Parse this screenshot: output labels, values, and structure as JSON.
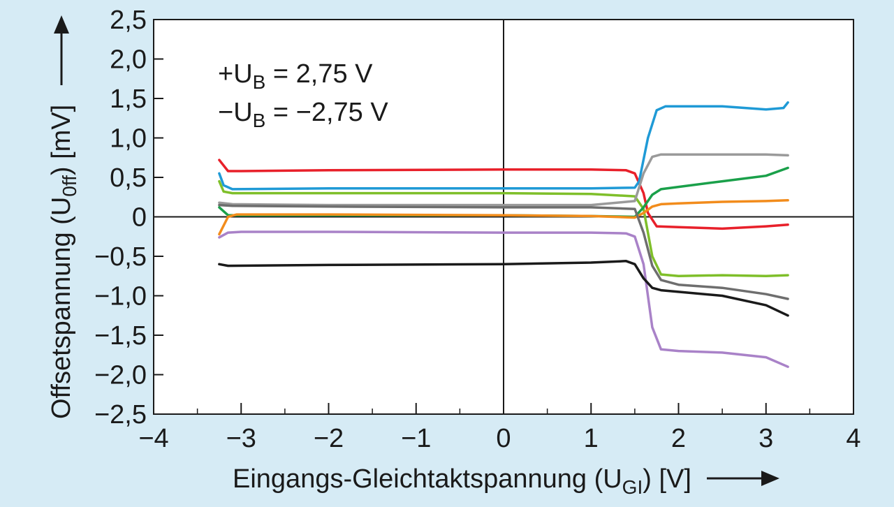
{
  "chart_data": {
    "type": "line",
    "xlabel": "Eingangs-Gleichtaktspannung (U",
    "xlabel_sub": "GI",
    "xlabel_tail": ") [V]",
    "ylabel": "Offsetspannung (U",
    "ylabel_sub": "0ff",
    "ylabel_tail": ") [mV]",
    "annotation": {
      "line1": {
        "prefix": "+U",
        "sub": "B",
        "suffix": " = 2,75 V"
      },
      "line2": {
        "prefix": "−U",
        "sub": "B",
        "suffix": " = −2,75 V"
      }
    },
    "xlim": [
      -4,
      4
    ],
    "ylim": [
      -2.5,
      2.5
    ],
    "xticks": [
      -4,
      -3,
      -2,
      -1,
      0,
      1,
      2,
      3,
      4
    ],
    "xtick_labels": [
      "−4",
      "−3",
      "−2",
      "−1",
      "0",
      "1",
      "2",
      "3",
      "4"
    ],
    "yticks": [
      2.5,
      2.0,
      1.5,
      1.0,
      0.5,
      0,
      -0.5,
      -1.0,
      -1.5,
      -2.0,
      -2.5
    ],
    "ytick_labels": [
      "2,5",
      "2,0",
      "1,5",
      "1,0",
      "0,5",
      "0",
      "−0,5",
      "−1,0",
      "−1,5",
      "−2,0",
      "−2,5"
    ],
    "grid": false,
    "series": [
      {
        "color": "#e8202a",
        "x": [
          -3.25,
          -3.15,
          -3.0,
          -2.0,
          0,
          1.0,
          1.4,
          1.5,
          1.6,
          1.65,
          1.75,
          2.0,
          2.5,
          3.0,
          3.25
        ],
        "y": [
          0.72,
          0.58,
          0.58,
          0.59,
          0.6,
          0.6,
          0.59,
          0.55,
          0.3,
          0.05,
          -0.12,
          -0.13,
          -0.15,
          -0.12,
          -0.1
        ]
      },
      {
        "color": "#1f9ad6",
        "x": [
          -3.25,
          -3.2,
          -3.1,
          -2.0,
          0,
          1.0,
          1.5,
          1.55,
          1.65,
          1.75,
          1.85,
          2.0,
          2.5,
          3.0,
          3.2,
          3.25
        ],
        "y": [
          0.55,
          0.4,
          0.35,
          0.36,
          0.36,
          0.36,
          0.37,
          0.45,
          1.0,
          1.35,
          1.4,
          1.4,
          1.4,
          1.36,
          1.38,
          1.45
        ]
      },
      {
        "color": "#7fbf2a",
        "x": [
          -3.25,
          -3.2,
          -3.1,
          -2.0,
          0,
          1.0,
          1.5,
          1.6,
          1.7,
          1.8,
          2.0,
          2.5,
          3.0,
          3.25
        ],
        "y": [
          0.45,
          0.32,
          0.3,
          0.3,
          0.3,
          0.29,
          0.26,
          0.1,
          -0.5,
          -0.73,
          -0.75,
          -0.74,
          -0.75,
          -0.74
        ]
      },
      {
        "color": "#9a9a9a",
        "x": [
          -3.25,
          -3.1,
          -2.0,
          0,
          1.0,
          1.5,
          1.6,
          1.7,
          1.8,
          2.0,
          2.5,
          3.0,
          3.25
        ],
        "y": [
          0.18,
          0.16,
          0.15,
          0.15,
          0.15,
          0.2,
          0.55,
          0.76,
          0.79,
          0.79,
          0.79,
          0.79,
          0.78
        ]
      },
      {
        "color": "#1aa04a",
        "x": [
          -3.25,
          -3.15,
          -2.0,
          0,
          1.0,
          1.5,
          1.6,
          1.7,
          1.8,
          2.0,
          2.5,
          3.0,
          3.25
        ],
        "y": [
          0.12,
          0.02,
          0.02,
          0.02,
          0.01,
          0.0,
          0.12,
          0.28,
          0.35,
          0.38,
          0.45,
          0.52,
          0.62
        ]
      },
      {
        "color": "#f28c1c",
        "x": [
          -3.25,
          -3.15,
          -3.05,
          -2.0,
          0,
          1.0,
          1.5,
          1.6,
          1.7,
          1.8,
          2.0,
          2.5,
          3.0,
          3.25
        ],
        "y": [
          -0.22,
          0.0,
          0.03,
          0.03,
          0.02,
          0.01,
          -0.01,
          0.05,
          0.13,
          0.16,
          0.17,
          0.19,
          0.2,
          0.21
        ]
      },
      {
        "color": "#6e6e6e",
        "x": [
          -3.25,
          -3.1,
          -2.0,
          0,
          1.0,
          1.5,
          1.6,
          1.7,
          1.8,
          2.0,
          2.5,
          3.0,
          3.25
        ],
        "y": [
          0.15,
          0.14,
          0.13,
          0.12,
          0.12,
          0.1,
          -0.2,
          -0.62,
          -0.8,
          -0.86,
          -0.9,
          -0.98,
          -1.04
        ]
      },
      {
        "color": "#a982c8",
        "x": [
          -3.25,
          -3.15,
          -3.0,
          -2.0,
          0,
          1.0,
          1.4,
          1.5,
          1.6,
          1.7,
          1.8,
          2.0,
          2.5,
          3.0,
          3.25
        ],
        "y": [
          -0.26,
          -0.2,
          -0.19,
          -0.19,
          -0.2,
          -0.2,
          -0.21,
          -0.25,
          -0.6,
          -1.4,
          -1.68,
          -1.7,
          -1.72,
          -1.78,
          -1.9
        ]
      },
      {
        "color": "#1a1a1a",
        "x": [
          -3.25,
          -3.15,
          -2.0,
          0,
          1.0,
          1.4,
          1.5,
          1.6,
          1.7,
          1.8,
          2.0,
          2.5,
          3.0,
          3.25
        ],
        "y": [
          -0.6,
          -0.62,
          -0.61,
          -0.6,
          -0.58,
          -0.56,
          -0.6,
          -0.78,
          -0.9,
          -0.93,
          -0.95,
          -1.0,
          -1.12,
          -1.25
        ]
      }
    ]
  }
}
